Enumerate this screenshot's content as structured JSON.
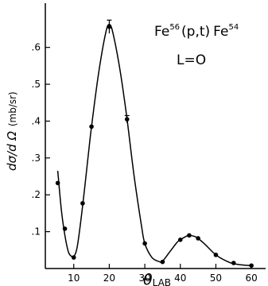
{
  "chart_data": {
    "type": "line",
    "title": "",
    "annotations": {
      "reaction": {
        "el1": "Fe",
        "a1": "56",
        "mid": "(p,t)",
        "el2": "Fe",
        "a2": "54"
      },
      "l_value": "L=O"
    },
    "xlabel": {
      "main": "θ",
      "sub": "LAB"
    },
    "ylabel": {
      "main": "dσ/d Ω",
      "unit": "(mb/sr)"
    },
    "xlim": [
      2,
      64
    ],
    "ylim": [
      0,
      0.72
    ],
    "xticks": [
      10,
      20,
      30,
      40,
      50,
      60
    ],
    "xtick_labels": [
      "10",
      "20",
      "30",
      "40",
      "50",
      "60"
    ],
    "yticks": [
      0.1,
      0.2,
      0.3,
      0.4,
      0.5,
      0.6
    ],
    "ytick_labels": [
      ".1",
      ".2",
      ".3",
      ".4",
      ".5",
      ".6"
    ],
    "grid": false,
    "series": [
      {
        "points_x": [
          5.5,
          7.5,
          10,
          12.5,
          15,
          20,
          25,
          30,
          35,
          40,
          42.5,
          45,
          50,
          55,
          60
        ],
        "points_y": [
          0.232,
          0.108,
          0.03,
          0.177,
          0.385,
          0.656,
          0.405,
          0.068,
          0.018,
          0.078,
          0.09,
          0.082,
          0.037,
          0.015,
          0.008
        ],
        "error_bars": [
          0,
          0,
          0,
          0,
          0,
          0.018,
          0.01,
          0,
          0,
          0,
          0,
          0,
          0,
          0,
          0
        ],
        "curve_x": [
          5.5,
          6.5,
          7.5,
          8.5,
          9.5,
          10,
          11,
          12.5,
          14,
          15,
          17,
          19,
          20,
          21,
          23,
          25,
          27,
          29,
          30,
          32,
          34,
          35,
          37,
          39,
          40,
          42,
          42.5,
          44,
          45,
          47,
          50,
          53,
          55,
          58,
          60
        ],
        "curve_y": [
          0.265,
          0.16,
          0.09,
          0.045,
          0.032,
          0.032,
          0.06,
          0.17,
          0.3,
          0.385,
          0.53,
          0.64,
          0.662,
          0.64,
          0.54,
          0.405,
          0.25,
          0.12,
          0.068,
          0.03,
          0.019,
          0.02,
          0.045,
          0.07,
          0.078,
          0.089,
          0.09,
          0.087,
          0.082,
          0.065,
          0.037,
          0.02,
          0.013,
          0.009,
          0.008
        ]
      }
    ]
  }
}
